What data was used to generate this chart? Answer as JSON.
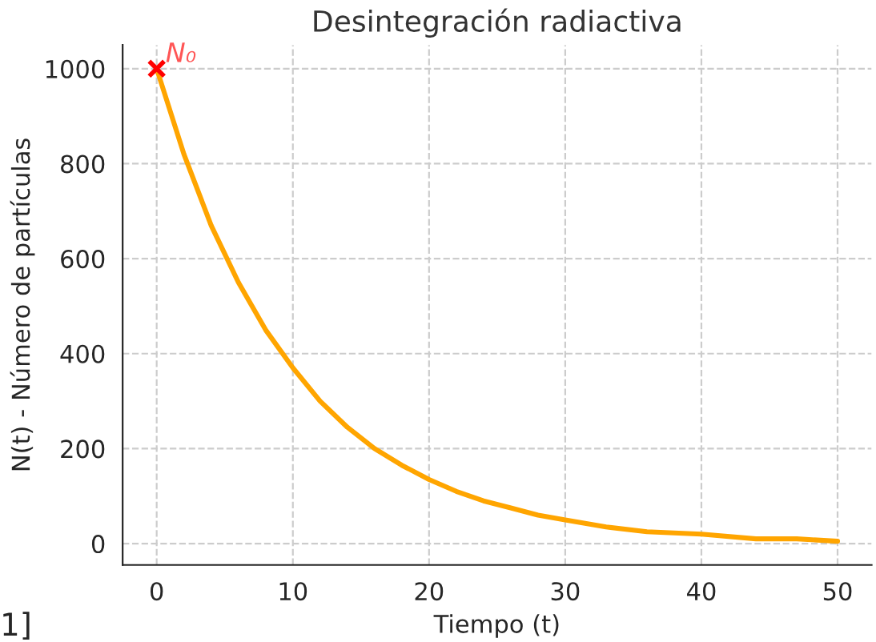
{
  "chart_data": {
    "type": "line",
    "title": "Desintegración radiactiva",
    "xlabel": "Tiempo (t)",
    "ylabel": "N(t) - Número de partículas",
    "series": [
      {
        "color": "#ffa500",
        "marker": "none",
        "line_style": "solid",
        "x": [
          0,
          2,
          4,
          6,
          8,
          10,
          12,
          14,
          16,
          18,
          20,
          22,
          24,
          26,
          28,
          30,
          33,
          36,
          40,
          44,
          47,
          50
        ],
        "values": [
          1000,
          820,
          670,
          550,
          450,
          370,
          300,
          245,
          200,
          165,
          135,
          110,
          90,
          75,
          60,
          50,
          35,
          25,
          20,
          10,
          10,
          5
        ]
      },
      {
        "type": "scatter",
        "color": "#ff0000",
        "marker": "cross",
        "x": [
          0
        ],
        "values": [
          1000
        ]
      }
    ],
    "annotations": [
      {
        "text": "N₀",
        "x": 0,
        "y": 1000
      },
      "1]"
    ],
    "xlim": [
      -2.5,
      52.5
    ],
    "ylim": [
      -45,
      1050
    ],
    "xticks": [
      0,
      10,
      20,
      30,
      40,
      50
    ],
    "yticks": [
      0,
      200,
      400,
      600,
      800,
      1000
    ],
    "grid": true,
    "legend": false
  }
}
